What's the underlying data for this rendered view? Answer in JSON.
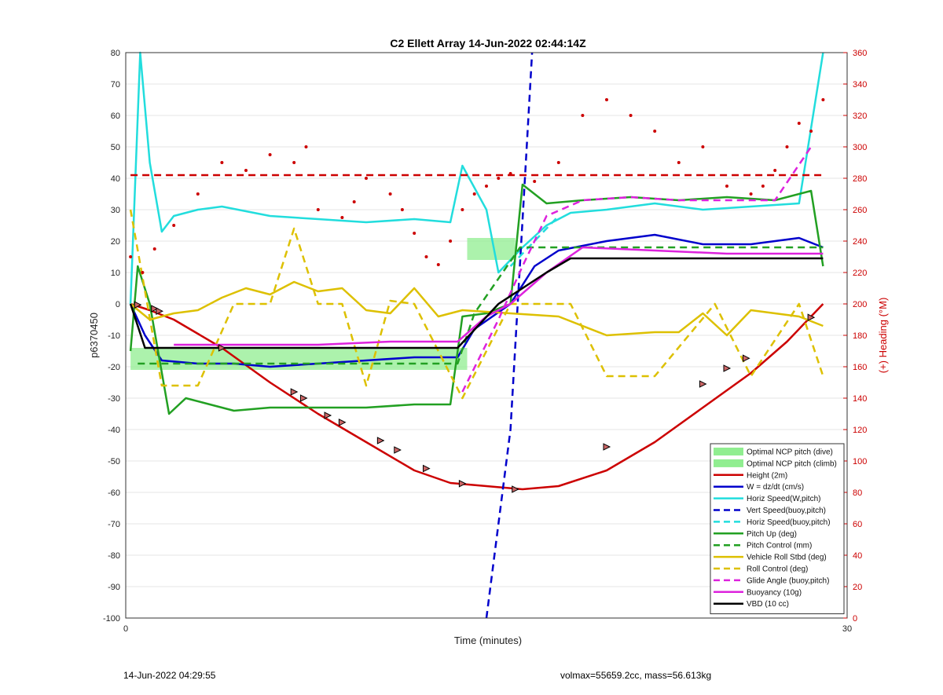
{
  "footer": {
    "timestamp": "14-Jun-2022 04:29:55",
    "info": "volmax=55659.2cc, mass=56.613kg"
  },
  "chart_data": {
    "type": "line",
    "title": "C2 Ellett Array 14-Jun-2022 02:44:14Z",
    "xlabel": "Time (minutes)",
    "ylabel": "p6370450",
    "ylabel_right": "(+) Heading (°M)",
    "xlim": [
      0,
      30
    ],
    "ylim": [
      -100,
      80
    ],
    "ylim_right": [
      0,
      360
    ],
    "x_ticks": [
      "0",
      "30"
    ],
    "y_ticks": [
      80,
      70,
      60,
      50,
      40,
      30,
      20,
      10,
      0,
      -10,
      -20,
      -30,
      -40,
      -50,
      -60,
      -70,
      -80,
      -90,
      -100
    ],
    "y_ticks_right": [
      360,
      340,
      320,
      300,
      280,
      260,
      240,
      220,
      200,
      180,
      160,
      140,
      120,
      100,
      80,
      60,
      40,
      20,
      0
    ],
    "grid": true,
    "legend_position": "bottom-right",
    "colors": {
      "red": "#cc0000",
      "blue": "#0000cc",
      "cyan": "#22dddd",
      "green": "#22a022",
      "yellow": "#ddc000",
      "magenta": "#dd22dd",
      "black": "#000000",
      "band": "#90ee90"
    },
    "bands": [
      {
        "name": "Optimal NCP pitch (dive)",
        "x": [
          0.2,
          14.2
        ],
        "y": [
          -21,
          -14
        ]
      },
      {
        "name": "Optimal NCP pitch (climb)",
        "x": [
          14.2,
          16.2
        ],
        "y": [
          14,
          21
        ]
      }
    ],
    "series": [
      {
        "name": "Height (2m)",
        "color": "#cc0000",
        "style": "solid",
        "axis": "left",
        "x": [
          0.2,
          1.0,
          2.0,
          4.0,
          6.0,
          8.0,
          10.0,
          12.0,
          13.5,
          15.0,
          16.5,
          18.0,
          20.0,
          22.0,
          24.0,
          26.0,
          27.5,
          29.0
        ],
        "y": [
          0,
          -2,
          -5,
          -14,
          -25,
          -35,
          -44,
          -53,
          -57,
          -58,
          -59,
          -58,
          -53,
          -44,
          -33,
          -22,
          -12,
          0
        ]
      },
      {
        "name": "W = dz/dt (cm/s)",
        "color": "#0000cc",
        "style": "solid",
        "axis": "left",
        "x": [
          0.2,
          0.8,
          1.5,
          3.0,
          4.5,
          6.0,
          8.0,
          10.0,
          12.0,
          13.8,
          14.5,
          16.0,
          17.0,
          18.0,
          20.0,
          22.0,
          24.0,
          26.0,
          28.0,
          29.0
        ],
        "y": [
          0,
          -10,
          -18,
          -19,
          -19,
          -20,
          -19,
          -18,
          -17,
          -17,
          -8,
          0,
          12,
          17,
          20,
          22,
          19,
          19,
          21,
          18
        ]
      },
      {
        "name": "Horiz Speed(W,pitch)",
        "color": "#22dddd",
        "style": "solid",
        "axis": "left",
        "x": [
          0.2,
          0.6,
          1.0,
          1.5,
          2.0,
          3.0,
          4.0,
          6.0,
          8.0,
          10.0,
          12.0,
          13.5,
          14.0,
          15.0,
          15.5,
          16.5,
          17.5,
          18.5,
          20.0,
          22.0,
          24.0,
          26.0,
          28.0,
          29.0
        ],
        "y": [
          0,
          80,
          45,
          23,
          28,
          30,
          31,
          28,
          27,
          26,
          27,
          26,
          44,
          30,
          10,
          18,
          25,
          29,
          30,
          32,
          30,
          31,
          32,
          80
        ]
      },
      {
        "name": "Vert Speed(buoy,pitch)",
        "color": "#0000cc",
        "style": "dashed",
        "axis": "left",
        "x": [
          15.0,
          16.0,
          16.6,
          16.9
        ],
        "y": [
          -100,
          -40,
          40,
          80
        ]
      },
      {
        "name": "Horiz Speed(buoy,pitch)",
        "color": "#22dddd",
        "style": "dashed",
        "axis": "left",
        "x": [
          16.0,
          18.0
        ],
        "y": [
          12,
          28
        ]
      },
      {
        "name": "Pitch Up (deg)",
        "color": "#22a022",
        "style": "solid",
        "axis": "left",
        "x": [
          0.2,
          0.5,
          1.0,
          1.8,
          2.5,
          3.5,
          4.5,
          6.0,
          8.0,
          10.0,
          12.0,
          13.5,
          14.0,
          15.0,
          16.0,
          16.5,
          17.5,
          19.0,
          21.0,
          23.0,
          25.0,
          27.0,
          28.5,
          29.0
        ],
        "y": [
          -15,
          12,
          0,
          -35,
          -30,
          -32,
          -34,
          -33,
          -33,
          -33,
          -32,
          -32,
          -4,
          -3,
          0,
          38,
          32,
          33,
          34,
          33,
          34,
          33,
          36,
          12
        ]
      },
      {
        "name": "Pitch Control (mm)",
        "color": "#22a022",
        "style": "dashed",
        "axis": "left",
        "x": [
          0.5,
          1.5,
          13.8,
          14.5,
          16.4,
          29.0
        ],
        "y": [
          -19,
          -19,
          -19,
          -3,
          18,
          18
        ]
      },
      {
        "name": "Vehicle Roll Stbd (deg)",
        "color": "#ddc000",
        "style": "solid",
        "axis": "left",
        "x": [
          0.2,
          1.0,
          2.0,
          3.0,
          4.0,
          5.0,
          6.0,
          7.0,
          8.0,
          9.0,
          10.0,
          11.0,
          12.0,
          13.0,
          14.0,
          16.0,
          18.0,
          20.0,
          22.0,
          23.0,
          24.0,
          25.0,
          26.0,
          27.0,
          28.0,
          29.0
        ],
        "y": [
          0,
          -5,
          -3,
          -2,
          2,
          5,
          3,
          7,
          4,
          5,
          -2,
          -3,
          5,
          -4,
          -2,
          -3,
          -4,
          -10,
          -9,
          -9,
          -3,
          -10,
          -2,
          -3,
          -4,
          -7
        ]
      },
      {
        "name": "Roll Control (deg)",
        "color": "#ddc000",
        "style": "dashed",
        "axis": "left",
        "x": [
          0.2,
          1.5,
          3.0,
          4.5,
          6.0,
          7.0,
          8.0,
          9.0,
          10.0,
          11.0,
          12.0,
          14.0,
          16.0,
          18.5,
          20.0,
          22.0,
          24.5,
          26.0,
          28.0,
          29.0
        ],
        "y": [
          30,
          -26,
          -26,
          0,
          0,
          24,
          0,
          0,
          -26,
          1,
          0,
          -30,
          0,
          0,
          -23,
          -23,
          0,
          -23,
          0,
          -23
        ]
      },
      {
        "name": "Glide Angle (buoy,pitch)",
        "color": "#dd22dd",
        "style": "dashed",
        "axis": "left",
        "x": [
          14.0,
          15.5,
          16.5,
          17.5,
          19.0,
          21.0,
          23.0,
          25.0,
          27.0,
          28.5
        ],
        "y": [
          -28,
          -5,
          12,
          28,
          33,
          34,
          33,
          33,
          33,
          50
        ]
      },
      {
        "name": "Buoyancy (10g)",
        "color": "#dd22dd",
        "style": "solid",
        "axis": "left",
        "x": [
          2.0,
          5.0,
          8.0,
          11.0,
          13.8,
          15.0,
          16.0,
          17.5,
          19.0,
          22.0,
          25.0,
          29.0
        ],
        "y": [
          -13,
          -13,
          -13,
          -12,
          -12,
          -4,
          0,
          10,
          18,
          17,
          16,
          16
        ]
      },
      {
        "name": "VBD (10 cc)",
        "color": "#000000",
        "style": "solid",
        "axis": "left",
        "x": [
          0.2,
          0.8,
          1.3,
          13.8,
          15.5,
          17.5,
          18.5,
          29.0
        ],
        "y": [
          0,
          -14,
          -14,
          -14,
          0,
          10,
          14.5,
          14.5
        ]
      },
      {
        "name": "Heading",
        "color": "#cc0000",
        "style": "dotted",
        "axis": "right",
        "x": [
          0.2,
          0.7,
          1.2,
          2.0,
          3.0,
          4.0,
          5.0,
          6.0,
          7.0,
          7.5,
          8.0,
          9.0,
          9.5,
          10.0,
          11.0,
          11.5,
          12.0,
          12.5,
          13.0,
          13.5,
          14.0,
          14.5,
          15.0,
          15.5,
          16.0,
          17.0,
          18.0,
          19.0,
          20.0,
          21.0,
          22.0,
          23.0,
          24.0,
          25.0,
          26.0,
          26.5,
          27.0,
          27.5,
          28.0,
          28.5,
          29.0
        ],
        "y": [
          230,
          220,
          235,
          250,
          270,
          290,
          285,
          295,
          290,
          300,
          260,
          255,
          265,
          280,
          270,
          260,
          245,
          230,
          225,
          240,
          260,
          270,
          275,
          280,
          283,
          278,
          290,
          320,
          330,
          320,
          310,
          290,
          300,
          275,
          270,
          275,
          285,
          300,
          315,
          310,
          330
        ]
      },
      {
        "name": "Heading reference",
        "color": "#cc0000",
        "style": "dashed",
        "axis": "right",
        "x": [
          0.2,
          29.0
        ],
        "y": [
          282,
          282
        ]
      }
    ],
    "markers": {
      "series": "Height (2m)",
      "x": [
        0.5,
        1.2,
        1.4,
        4.0,
        7.0,
        7.4,
        8.4,
        9.0,
        10.6,
        11.3,
        12.5,
        14.0,
        16.2,
        20.0,
        24.0,
        25.0,
        25.8,
        28.5
      ],
      "y": [
        -0.3,
        -1.5,
        -2.3,
        -14,
        -28,
        -30,
        -35.5,
        -37.7,
        -43.5,
        -46.5,
        -52.4,
        -57.2,
        -59,
        -45.5,
        -25.5,
        -20.5,
        -17.3,
        -4.3
      ]
    },
    "legend": [
      {
        "label": "Optimal NCP pitch (dive)",
        "kind": "patch",
        "color": "#90ee90"
      },
      {
        "label": "Optimal NCP pitch (climb)",
        "kind": "patch",
        "color": "#90ee90"
      },
      {
        "label": "Height (2m)",
        "kind": "solid",
        "color": "#cc0000"
      },
      {
        "label": "W = dz/dt (cm/s)",
        "kind": "solid",
        "color": "#0000cc"
      },
      {
        "label": "Horiz Speed(W,pitch)",
        "kind": "solid",
        "color": "#22dddd"
      },
      {
        "label": "Vert Speed(buoy,pitch)",
        "kind": "dashed",
        "color": "#0000cc"
      },
      {
        "label": "Horiz Speed(buoy,pitch)",
        "kind": "dashed",
        "color": "#22dddd"
      },
      {
        "label": "Pitch Up (deg)",
        "kind": "solid",
        "color": "#22a022"
      },
      {
        "label": "Pitch Control (mm)",
        "kind": "dashed",
        "color": "#22a022"
      },
      {
        "label": "Vehicle Roll Stbd (deg)",
        "kind": "solid",
        "color": "#ddc000"
      },
      {
        "label": "Roll Control (deg)",
        "kind": "dashed",
        "color": "#ddc000"
      },
      {
        "label": "Glide Angle (buoy,pitch)",
        "kind": "dashed",
        "color": "#dd22dd"
      },
      {
        "label": "Buoyancy (10g)",
        "kind": "solid",
        "color": "#dd22dd"
      },
      {
        "label": "VBD (10 cc)",
        "kind": "solid",
        "color": "#000000"
      }
    ]
  }
}
